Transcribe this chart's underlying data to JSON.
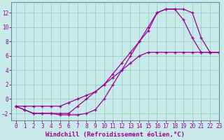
{
  "background_color": "#c8eaea",
  "grid_color": "#9fc9c9",
  "line_color": "#990099",
  "spine_color": "#668899",
  "xlabel": "Windchill (Refroidissement éolien,°C)",
  "xlabel_fontsize": 6.5,
  "tick_fontsize": 5.5,
  "xlim": [
    -0.5,
    23
  ],
  "ylim": [
    -3,
    13.5
  ],
  "yticks": [
    -2,
    0,
    2,
    4,
    6,
    8,
    10,
    12
  ],
  "xticks": [
    0,
    1,
    2,
    3,
    4,
    5,
    6,
    7,
    8,
    9,
    10,
    11,
    12,
    13,
    14,
    15,
    16,
    17,
    18,
    19,
    20,
    21,
    22,
    23
  ],
  "line1_x": [
    0,
    1,
    2,
    3,
    4,
    5,
    6,
    7,
    8,
    9,
    10,
    11,
    12,
    13,
    14,
    15,
    16,
    17,
    18,
    19,
    20,
    21,
    22,
    23
  ],
  "line1_y": [
    -1,
    -1.5,
    -2,
    -2,
    -2,
    -2.2,
    -2.2,
    -2.2,
    -2,
    -1.5,
    0,
    2,
    4,
    6,
    8,
    10,
    12,
    12.5,
    12.5,
    12.5,
    12,
    8.5,
    6.5,
    6.5
  ],
  "line2_x": [
    0,
    1,
    2,
    3,
    4,
    5,
    6,
    7,
    8,
    9,
    10,
    11,
    12,
    13,
    14,
    15,
    16,
    17,
    18,
    19,
    20,
    21,
    22,
    23
  ],
  "line2_y": [
    -1,
    -1.5,
    -2,
    -2,
    -2,
    -2,
    -2,
    -1,
    0,
    1,
    2,
    3.5,
    5,
    6.5,
    8,
    9.5,
    12,
    12.5,
    12.5,
    11,
    8.5,
    6.5,
    6.5,
    6.5
  ],
  "line3_x": [
    0,
    1,
    2,
    3,
    4,
    5,
    6,
    7,
    8,
    9,
    10,
    11,
    12,
    13,
    14,
    15,
    16,
    17,
    18,
    19,
    20,
    21,
    22,
    23
  ],
  "line3_y": [
    -1,
    -1,
    -1,
    -1,
    -1,
    -1,
    -0.5,
    0,
    0.5,
    1,
    2,
    3,
    4,
    5,
    6,
    6.5,
    6.5,
    6.5,
    6.5,
    6.5,
    6.5,
    6.5,
    6.5,
    6.5
  ]
}
